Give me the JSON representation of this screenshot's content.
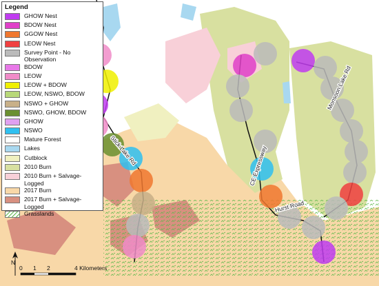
{
  "legend": {
    "title": "Legend",
    "items": [
      {
        "label": "GHOW Nest",
        "color": "#c03cf0"
      },
      {
        "label": "BDOW Nest",
        "color": "#e040c8"
      },
      {
        "label": "GGOW Nest",
        "color": "#f07830"
      },
      {
        "label": "LEOW Nest",
        "color": "#f04040"
      },
      {
        "label": "Survey Point - No Observation",
        "color": "#bbbbbb"
      },
      {
        "label": "BDOW",
        "color": "#e879e8"
      },
      {
        "label": "LEOW",
        "color": "#f08cc8"
      },
      {
        "label": "LEOW + BDOW",
        "color": "#f0f000"
      },
      {
        "label": "LEOW, NSWO, BDOW",
        "color": "#b8d878"
      },
      {
        "label": "NSWO + GHOW",
        "color": "#c8b088"
      },
      {
        "label": "NSWO, GHOW, BDOW",
        "color": "#6a9030"
      },
      {
        "label": "GHOW",
        "color": "#e0a0f0"
      },
      {
        "label": "NSWO",
        "color": "#30c0f0"
      },
      {
        "label": "Mature Forest",
        "color": "#ffffff"
      },
      {
        "label": "Lakes",
        "color": "#a8d8f0"
      },
      {
        "label": "Cutblock",
        "color": "#f0f0c0"
      },
      {
        "label": "2010 Burn",
        "color": "#d8e0a0"
      },
      {
        "label": "2010 Burn + Salvage-Logged",
        "color": "#f8d0d8"
      },
      {
        "label": "2017 Burn",
        "color": "#f8d8a8"
      },
      {
        "label": "2017 Burn + Salvage-Logged",
        "color": "#d89080"
      },
      {
        "label": "Grasslands",
        "color": "#5cb84a",
        "pattern": "hatch"
      }
    ]
  },
  "roads": [
    "Stick Lake Rd",
    "CE Expressway",
    "Hurst Road",
    "Monsoon Lake Rd"
  ],
  "scale_bar": {
    "labels": [
      "0",
      "1",
      "2",
      "4 Kilometers"
    ]
  },
  "north": "N"
}
